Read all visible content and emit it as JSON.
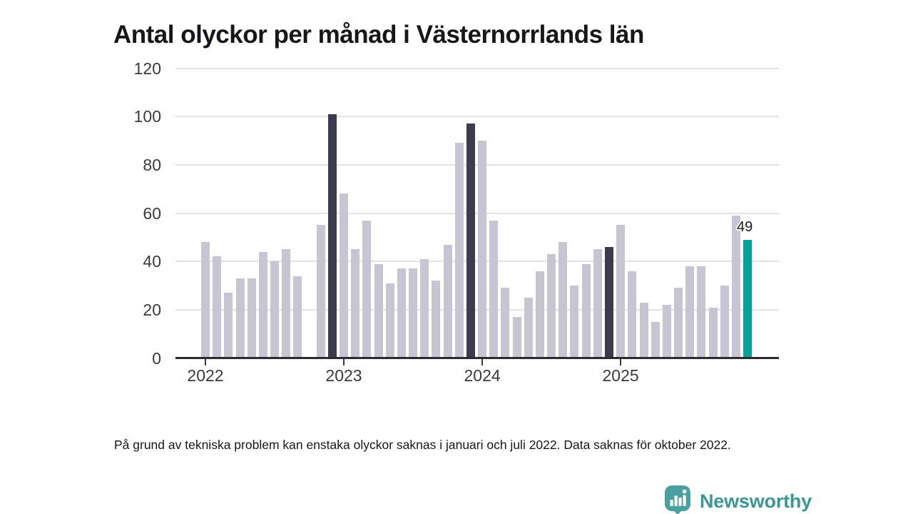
{
  "page": {
    "title": "Antal olyckor per månad i Västernorrlands län",
    "footnote": "På grund av tekniska problem kan enstaka olyckor saknas i januari och juli 2022. Data saknas för oktober 2022."
  },
  "branding": {
    "logo_text": "Newsworthy",
    "logo_icon": "newsworthy-speech-bubble-bar-chart-icon",
    "icon_color": "#4aa0a0",
    "text_color": "#399795"
  },
  "chart_data": {
    "type": "bar",
    "title": "Antal olyckor per månad i Västernorrlands län",
    "xlabel": "",
    "ylabel": "",
    "ylim": [
      0,
      120
    ],
    "y_ticks": [
      0,
      20,
      40,
      60,
      80,
      100,
      120
    ],
    "x_tick_years": [
      "2022",
      "2023",
      "2024",
      "2025"
    ],
    "grid": "horizontal",
    "legend": "none",
    "colors": {
      "default": "#c7c5d1",
      "dark": "#3d3c4e",
      "highlight": "#00a39a",
      "gridline": "#e3e3e6",
      "axis": "#2b2b30",
      "tick_label": "#3a3a3a"
    },
    "annotation": {
      "text": "49",
      "month": "2025-12"
    },
    "months": [
      {
        "month": "2022-01",
        "value": 48,
        "color": "default"
      },
      {
        "month": "2022-02",
        "value": 42,
        "color": "default"
      },
      {
        "month": "2022-03",
        "value": 27,
        "color": "default"
      },
      {
        "month": "2022-04",
        "value": 33,
        "color": "default"
      },
      {
        "month": "2022-05",
        "value": 33,
        "color": "default"
      },
      {
        "month": "2022-06",
        "value": 44,
        "color": "default"
      },
      {
        "month": "2022-07",
        "value": 40,
        "color": "default"
      },
      {
        "month": "2022-08",
        "value": 45,
        "color": "default"
      },
      {
        "month": "2022-09",
        "value": 34,
        "color": "default"
      },
      {
        "month": "2022-10",
        "value": null,
        "color": "default"
      },
      {
        "month": "2022-11",
        "value": 55,
        "color": "default"
      },
      {
        "month": "2022-12",
        "value": 101,
        "color": "dark"
      },
      {
        "month": "2023-01",
        "value": 68,
        "color": "default"
      },
      {
        "month": "2023-02",
        "value": 45,
        "color": "default"
      },
      {
        "month": "2023-03",
        "value": 57,
        "color": "default"
      },
      {
        "month": "2023-04",
        "value": 39,
        "color": "default"
      },
      {
        "month": "2023-05",
        "value": 31,
        "color": "default"
      },
      {
        "month": "2023-06",
        "value": 37,
        "color": "default"
      },
      {
        "month": "2023-07",
        "value": 37,
        "color": "default"
      },
      {
        "month": "2023-08",
        "value": 41,
        "color": "default"
      },
      {
        "month": "2023-09",
        "value": 32,
        "color": "default"
      },
      {
        "month": "2023-10",
        "value": 47,
        "color": "default"
      },
      {
        "month": "2023-11",
        "value": 89,
        "color": "default"
      },
      {
        "month": "2023-12",
        "value": 97,
        "color": "dark"
      },
      {
        "month": "2024-01",
        "value": 90,
        "color": "default"
      },
      {
        "month": "2024-02",
        "value": 57,
        "color": "default"
      },
      {
        "month": "2024-03",
        "value": 29,
        "color": "default"
      },
      {
        "month": "2024-04",
        "value": 17,
        "color": "default"
      },
      {
        "month": "2024-05",
        "value": 25,
        "color": "default"
      },
      {
        "month": "2024-06",
        "value": 36,
        "color": "default"
      },
      {
        "month": "2024-07",
        "value": 43,
        "color": "default"
      },
      {
        "month": "2024-08",
        "value": 48,
        "color": "default"
      },
      {
        "month": "2024-09",
        "value": 30,
        "color": "default"
      },
      {
        "month": "2024-10",
        "value": 39,
        "color": "default"
      },
      {
        "month": "2024-11",
        "value": 45,
        "color": "default"
      },
      {
        "month": "2024-12",
        "value": 46,
        "color": "dark"
      },
      {
        "month": "2025-01",
        "value": 55,
        "color": "default"
      },
      {
        "month": "2025-02",
        "value": 36,
        "color": "default"
      },
      {
        "month": "2025-03",
        "value": 23,
        "color": "default"
      },
      {
        "month": "2025-04",
        "value": 15,
        "color": "default"
      },
      {
        "month": "2025-05",
        "value": 22,
        "color": "default"
      },
      {
        "month": "2025-06",
        "value": 29,
        "color": "default"
      },
      {
        "month": "2025-07",
        "value": 38,
        "color": "default"
      },
      {
        "month": "2025-08",
        "value": 38,
        "color": "default"
      },
      {
        "month": "2025-09",
        "value": 21,
        "color": "default"
      },
      {
        "month": "2025-10",
        "value": 30,
        "color": "default"
      },
      {
        "month": "2025-11",
        "value": 59,
        "color": "default"
      },
      {
        "month": "2025-12",
        "value": 49,
        "color": "highlight"
      }
    ]
  }
}
